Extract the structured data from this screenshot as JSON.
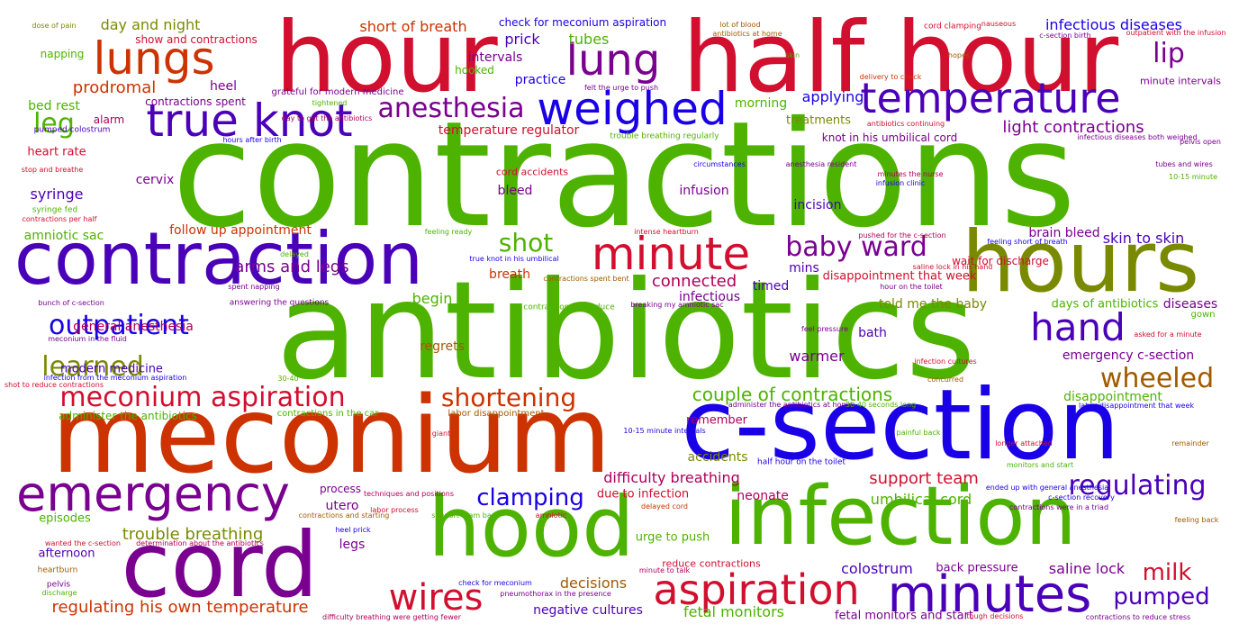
{
  "palette": {
    "green": "#4db300",
    "red": "#d10f2f",
    "orange_red": "#cc3300",
    "purple": "#7a0090",
    "violet": "#4a00b8",
    "blue": "#1a00e6",
    "olive": "#7a8a00",
    "brown": "#a05a00",
    "magenta": "#b0005a"
  },
  "words": [
    {
      "text": "contractions",
      "color": "green"
    },
    {
      "text": "antibiotics",
      "color": "green"
    },
    {
      "text": "meconium",
      "color": "orange_red"
    },
    {
      "text": "c-section",
      "color": "blue"
    },
    {
      "text": "hour",
      "color": "red"
    },
    {
      "text": "half hour",
      "color": "red"
    },
    {
      "text": "contraction",
      "color": "violet"
    },
    {
      "text": "hours",
      "color": "olive"
    },
    {
      "text": "hood",
      "color": "green"
    },
    {
      "text": "infection",
      "color": "green"
    },
    {
      "text": "cord",
      "color": "purple"
    },
    {
      "text": "lungs",
      "color": "orange_red"
    },
    {
      "text": "true knot",
      "color": "violet"
    },
    {
      "text": "weighed",
      "color": "blue"
    },
    {
      "text": "temperature",
      "color": "violet"
    },
    {
      "text": "lung",
      "color": "purple"
    },
    {
      "text": "emergency",
      "color": "purple"
    },
    {
      "text": "minute",
      "color": "red"
    },
    {
      "text": "minutes",
      "color": "violet"
    },
    {
      "text": "aspiration",
      "color": "red"
    },
    {
      "text": "wires",
      "color": "red"
    },
    {
      "text": "hand",
      "color": "violet"
    },
    {
      "text": "anesthesia",
      "color": "purple"
    },
    {
      "text": "lip",
      "color": "purple"
    },
    {
      "text": "leg",
      "color": "green"
    },
    {
      "text": "outpatient",
      "color": "blue"
    },
    {
      "text": "baby ward",
      "color": "purple"
    },
    {
      "text": "shot",
      "color": "green"
    },
    {
      "text": "learned",
      "color": "olive"
    },
    {
      "text": "wheeled",
      "color": "brown"
    },
    {
      "text": "regulating",
      "color": "violet"
    },
    {
      "text": "meconium aspiration",
      "color": "red"
    },
    {
      "text": "shortening",
      "color": "orange_red"
    },
    {
      "text": "clamping",
      "color": "blue"
    },
    {
      "text": "milk",
      "color": "red"
    },
    {
      "text": "pumped",
      "color": "violet"
    },
    {
      "text": "prodromal",
      "color": "orange_red"
    },
    {
      "text": "couple of contractions",
      "color": "green"
    },
    {
      "text": "support team",
      "color": "red"
    },
    {
      "text": "trouble breathing",
      "color": "olive"
    },
    {
      "text": "regulating his own temperature",
      "color": "orange_red"
    },
    {
      "text": "difficulty breathing",
      "color": "magenta"
    },
    {
      "text": "light contractions",
      "color": "purple"
    },
    {
      "text": "arms and legs",
      "color": "purple"
    },
    {
      "text": "applying",
      "color": "blue"
    },
    {
      "text": "infectious diseases",
      "color": "blue"
    },
    {
      "text": "day and night",
      "color": "olive"
    },
    {
      "text": "short of breath",
      "color": "orange_red"
    },
    {
      "text": "prick",
      "color": "violet"
    },
    {
      "text": "tubes",
      "color": "green"
    },
    {
      "text": "intervals",
      "color": "purple"
    },
    {
      "text": "practice",
      "color": "blue"
    },
    {
      "text": "heel",
      "color": "purple"
    },
    {
      "text": "bed rest",
      "color": "green"
    },
    {
      "text": "alarm",
      "color": "magenta"
    },
    {
      "text": "morning",
      "color": "green"
    },
    {
      "text": "treatments",
      "color": "olive"
    },
    {
      "text": "temperature regulator",
      "color": "red"
    },
    {
      "text": "heart rate",
      "color": "red"
    },
    {
      "text": "cervix",
      "color": "purple"
    },
    {
      "text": "syringe",
      "color": "violet"
    },
    {
      "text": "bleed",
      "color": "purple"
    },
    {
      "text": "infusion",
      "color": "purple"
    },
    {
      "text": "incision",
      "color": "violet"
    },
    {
      "text": "amniotic sac",
      "color": "green"
    },
    {
      "text": "follow up appointment",
      "color": "orange_red"
    },
    {
      "text": "brain bleed",
      "color": "purple"
    },
    {
      "text": "skin to skin",
      "color": "violet"
    },
    {
      "text": "wait for discharge",
      "color": "red"
    },
    {
      "text": "mins",
      "color": "violet"
    },
    {
      "text": "timed",
      "color": "violet"
    },
    {
      "text": "connected",
      "color": "magenta"
    },
    {
      "text": "breath",
      "color": "orange_red"
    },
    {
      "text": "begin",
      "color": "green"
    },
    {
      "text": "infectious",
      "color": "purple"
    },
    {
      "text": "disappointment that week",
      "color": "red"
    },
    {
      "text": "told me the baby",
      "color": "olive"
    },
    {
      "text": "days of antibiotics",
      "color": "green"
    },
    {
      "text": "diseases",
      "color": "purple"
    },
    {
      "text": "gown",
      "color": "green"
    },
    {
      "text": "general anesthesia",
      "color": "magenta"
    },
    {
      "text": "bath",
      "color": "violet"
    },
    {
      "text": "emergency c-section",
      "color": "purple"
    },
    {
      "text": "regrets",
      "color": "brown"
    },
    {
      "text": "warmer",
      "color": "purple"
    },
    {
      "text": "modern medicine",
      "color": "violet"
    },
    {
      "text": "disappointment",
      "color": "green"
    },
    {
      "text": "remember",
      "color": "magenta"
    },
    {
      "text": "accidents",
      "color": "olive"
    },
    {
      "text": "administer the antibiotics",
      "color": "green"
    },
    {
      "text": "contractions in the car",
      "color": "green"
    },
    {
      "text": "labor disappointment",
      "color": "brown"
    },
    {
      "text": "process",
      "color": "purple"
    },
    {
      "text": "utero",
      "color": "purple"
    },
    {
      "text": "due to infection",
      "color": "red"
    },
    {
      "text": "neonate",
      "color": "magenta"
    },
    {
      "text": "umbilical cord",
      "color": "green"
    },
    {
      "text": "episodes",
      "color": "green"
    },
    {
      "text": "afternoon",
      "color": "violet"
    },
    {
      "text": "legs",
      "color": "purple"
    },
    {
      "text": "urge to push",
      "color": "green"
    },
    {
      "text": "decisions",
      "color": "brown"
    },
    {
      "text": "colostrum",
      "color": "violet"
    },
    {
      "text": "back pressure",
      "color": "purple"
    },
    {
      "text": "saline lock",
      "color": "purple"
    },
    {
      "text": "reduce contractions",
      "color": "red"
    },
    {
      "text": "negative cultures",
      "color": "violet"
    },
    {
      "text": "fetal monitors",
      "color": "green"
    },
    {
      "text": "fetal monitors and start",
      "color": "purple"
    },
    {
      "text": "check for meconium aspiration",
      "color": "blue"
    },
    {
      "text": "hooked",
      "color": "green"
    },
    {
      "text": "show and contractions",
      "color": "red"
    },
    {
      "text": "napping",
      "color": "green"
    },
    {
      "text": "contractions spent",
      "color": "purple"
    },
    {
      "text": "grateful for modern medicine",
      "color": "purple"
    },
    {
      "text": "knot in his umbilical cord",
      "color": "purple"
    },
    {
      "text": "cord accidents",
      "color": "red"
    },
    {
      "text": "minute intervals",
      "color": "purple"
    },
    {
      "text": "trouble breathing regularly",
      "color": "green"
    },
    {
      "text": "pumped colostrum",
      "color": "violet"
    },
    {
      "text": "hours after birth",
      "color": "blue"
    },
    {
      "text": "dose of pain",
      "color": "olive"
    },
    {
      "text": "lot of blood",
      "color": "brown"
    },
    {
      "text": "antibiotics at home",
      "color": "brown"
    },
    {
      "text": "cord clamping",
      "color": "red"
    },
    {
      "text": "nauseous",
      "color": "red"
    },
    {
      "text": "c-section birth",
      "color": "purple"
    },
    {
      "text": "outpatient with the infusion",
      "color": "red"
    },
    {
      "text": "hopes",
      "color": "brown"
    },
    {
      "text": "skin",
      "color": "green"
    },
    {
      "text": "delivery to check",
      "color": "orange_red"
    },
    {
      "text": "felt the urge to push",
      "color": "purple"
    },
    {
      "text": "tightened",
      "color": "green"
    },
    {
      "text": "day to get the antibiotics",
      "color": "magenta"
    },
    {
      "text": "antibiotics continuing",
      "color": "red"
    },
    {
      "text": "infectious diseases both weighed",
      "color": "purple"
    },
    {
      "text": "pelvis open",
      "color": "purple"
    },
    {
      "text": "stop and breathe",
      "color": "red"
    },
    {
      "text": "circumstances",
      "color": "blue"
    },
    {
      "text": "anesthesia resident",
      "color": "purple"
    },
    {
      "text": "minutes the nurse",
      "color": "magenta"
    },
    {
      "text": "infusion clinic",
      "color": "blue"
    },
    {
      "text": "tubes and wires",
      "color": "purple"
    },
    {
      "text": "10-15 minute",
      "color": "green"
    },
    {
      "text": "syringe fed",
      "color": "green"
    },
    {
      "text": "contractions per half",
      "color": "red"
    },
    {
      "text": "feeling ready",
      "color": "green"
    },
    {
      "text": "intense heartburn",
      "color": "red"
    },
    {
      "text": "pushed for the c-section",
      "color": "magenta"
    },
    {
      "text": "feeling short of breath",
      "color": "blue"
    },
    {
      "text": "hour on the toilet",
      "color": "purple"
    },
    {
      "text": "delayed",
      "color": "green"
    },
    {
      "text": "true knot in his umbilical",
      "color": "blue"
    },
    {
      "text": "saline lock in his hand",
      "color": "red"
    },
    {
      "text": "spent napping",
      "color": "purple"
    },
    {
      "text": "answering the questions",
      "color": "purple"
    },
    {
      "text": "contractions spent bent",
      "color": "brown"
    },
    {
      "text": "contractions to reduce",
      "color": "green"
    },
    {
      "text": "breaking my amniotic sac",
      "color": "purple"
    },
    {
      "text": "bunch of c-section",
      "color": "purple"
    },
    {
      "text": "meconium in the fluid",
      "color": "purple"
    },
    {
      "text": "feel pressure",
      "color": "purple"
    },
    {
      "text": "asked for a minute",
      "color": "red"
    },
    {
      "text": "infection from the meconium aspiration",
      "color": "blue"
    },
    {
      "text": "shot to reduce contractions",
      "color": "red"
    },
    {
      "text": "30-40",
      "color": "green"
    },
    {
      "text": "infection cultures",
      "color": "red"
    },
    {
      "text": "concurred",
      "color": "brown"
    },
    {
      "text": "administer the antibiotics at home",
      "color": "purple"
    },
    {
      "text": "30-40 seconds long",
      "color": "green"
    },
    {
      "text": "labor disappointment that week",
      "color": "blue"
    },
    {
      "text": "giant",
      "color": "red"
    },
    {
      "text": "10-15 minute intervals",
      "color": "blue"
    },
    {
      "text": "painful back",
      "color": "green"
    },
    {
      "text": "longer attached",
      "color": "red"
    },
    {
      "text": "remainder",
      "color": "brown"
    },
    {
      "text": "half hour on the toilet",
      "color": "blue"
    },
    {
      "text": "monitors and start",
      "color": "green"
    },
    {
      "text": "ended up with general anesthesia",
      "color": "blue"
    },
    {
      "text": "c-section recovery",
      "color": "blue"
    },
    {
      "text": "techniques and positions",
      "color": "magenta"
    },
    {
      "text": "contractions and starting",
      "color": "brown"
    },
    {
      "text": "support team back",
      "color": "green"
    },
    {
      "text": "amniotic",
      "color": "red"
    },
    {
      "text": "delayed cord",
      "color": "orange_red"
    },
    {
      "text": "contractions were in a triad",
      "color": "purple"
    },
    {
      "text": "feeling back",
      "color": "brown"
    },
    {
      "text": "heel prick",
      "color": "blue"
    },
    {
      "text": "labor process",
      "color": "red"
    },
    {
      "text": "wanted the c-section",
      "color": "red"
    },
    {
      "text": "determination about the antibiotics",
      "color": "magenta"
    },
    {
      "text": "minute to talk",
      "color": "magenta"
    },
    {
      "text": "heartburn",
      "color": "brown"
    },
    {
      "text": "pelvis",
      "color": "purple"
    },
    {
      "text": "check for meconium",
      "color": "blue"
    },
    {
      "text": "pneumothorax in the presence",
      "color": "purple"
    },
    {
      "text": "discharge",
      "color": "green"
    },
    {
      "text": "difficulty breathing were getting fewer",
      "color": "magenta"
    },
    {
      "text": "tough decisions",
      "color": "red"
    },
    {
      "text": "contractions to reduce stress",
      "color": "purple"
    }
  ]
}
